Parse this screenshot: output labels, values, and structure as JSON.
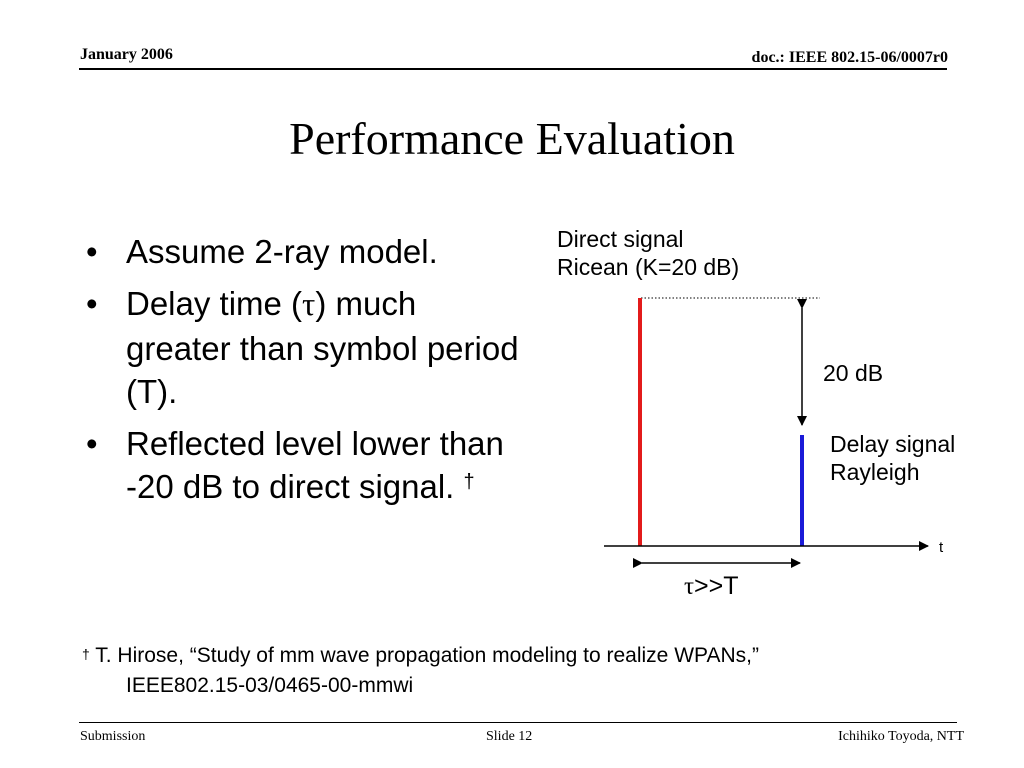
{
  "header": {
    "date": "January 2006",
    "doc": "doc.: IEEE 802.15-06/0007r0"
  },
  "slide": {
    "title": "Performance Evaluation"
  },
  "bullets": {
    "b1": "Assume 2-ray model.",
    "b2_pre": "Delay time (",
    "b2_sym": "τ",
    "b2_post": ") much greater than symbol period (T).",
    "b3": "Reflected level lower than -20 dB to direct signal.",
    "b3_dagger": "†"
  },
  "diagram": {
    "direct_line1": "Direct signal",
    "direct_line2": "Ricean (K=20 dB)",
    "gap_label": "20 dB",
    "delay_line1": "Delay signal",
    "delay_line2": "Rayleigh",
    "axis_label": "t",
    "tau_sym": "τ",
    "tau_rest": ">>T",
    "colors": {
      "direct": "#e31b1b",
      "delay": "#1a1ad8"
    }
  },
  "footnote": {
    "dagger": "†",
    "line1": " T. Hirose, “Study of mm wave propagation modeling to realize WPANs,”",
    "line2": "IEEE802.15-03/0465-00-mmwi"
  },
  "footer": {
    "left": "Submission",
    "center": "Slide 12",
    "right": "Ichihiko Toyoda, NTT"
  }
}
